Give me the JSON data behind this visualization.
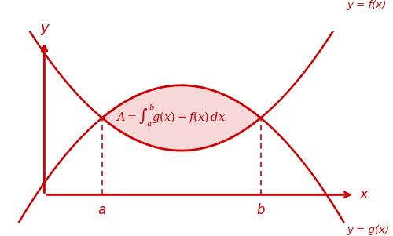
{
  "bg_color": "#ffffff",
  "curve_color": "#cc0000",
  "fill_color": "#f2b8b8",
  "fill_alpha": 0.55,
  "text_color": "#cc0000",
  "label_x": "x",
  "label_y": "y",
  "label_a": "a",
  "label_b": "b",
  "label_fx": "y = f(x)",
  "label_gx": "y = g(x)",
  "formula": "$A = \\int_a^b\\!g(x) - f(x)\\, dx$",
  "figsize": [
    5.0,
    3.01
  ],
  "dpi": 100,
  "xlim": [
    0,
    10
  ],
  "ylim": [
    0,
    10
  ],
  "origin_x": 1.2,
  "origin_y": 1.5,
  "xaxis_end": 9.8,
  "yaxis_end": 9.5,
  "a_val": 2.8,
  "b_val": 7.2,
  "intersect_y": 5.5,
  "g_peak": 7.2,
  "f_trough": 3.8
}
